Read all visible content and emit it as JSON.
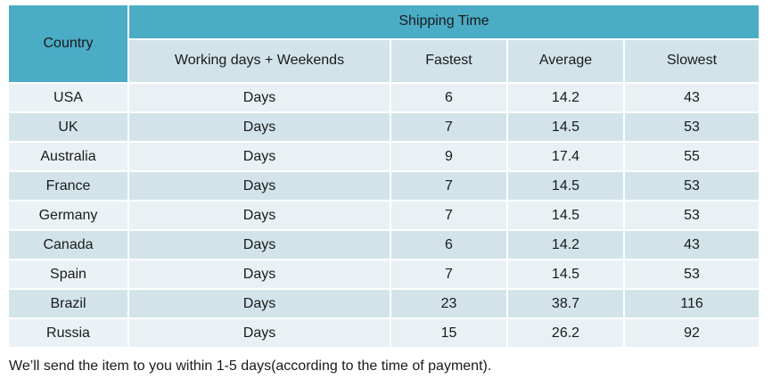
{
  "table": {
    "header": {
      "country": "Country",
      "group": "Shipping Time",
      "columns": [
        "Working days + Weekends",
        "Fastest",
        "Average",
        "Slowest"
      ]
    },
    "rows": [
      {
        "country": "USA",
        "unit": "Days",
        "fastest": "6",
        "average": "14.2",
        "slowest": "43"
      },
      {
        "country": "UK",
        "unit": "Days",
        "fastest": "7",
        "average": "14.5",
        "slowest": "53"
      },
      {
        "country": "Australia",
        "unit": "Days",
        "fastest": "9",
        "average": "17.4",
        "slowest": "55"
      },
      {
        "country": "France",
        "unit": "Days",
        "fastest": "7",
        "average": "14.5",
        "slowest": "53"
      },
      {
        "country": "Germany",
        "unit": "Days",
        "fastest": "7",
        "average": "14.5",
        "slowest": "53"
      },
      {
        "country": "Canada",
        "unit": "Days",
        "fastest": "6",
        "average": "14.2",
        "slowest": "43"
      },
      {
        "country": "Spain",
        "unit": "Days",
        "fastest": "7",
        "average": "14.5",
        "slowest": "53"
      },
      {
        "country": "Brazil",
        "unit": "Days",
        "fastest": "23",
        "average": "38.7",
        "slowest": "116"
      },
      {
        "country": "Russia",
        "unit": "Days",
        "fastest": "15",
        "average": "26.2",
        "slowest": "92"
      }
    ]
  },
  "note": "We’ll send the item to you within 1-5 days(according to the time of payment).",
  "colors": {
    "header": "#4bacc6",
    "row_light": "#e9f1f4",
    "row_dark": "#d2e4ea"
  }
}
